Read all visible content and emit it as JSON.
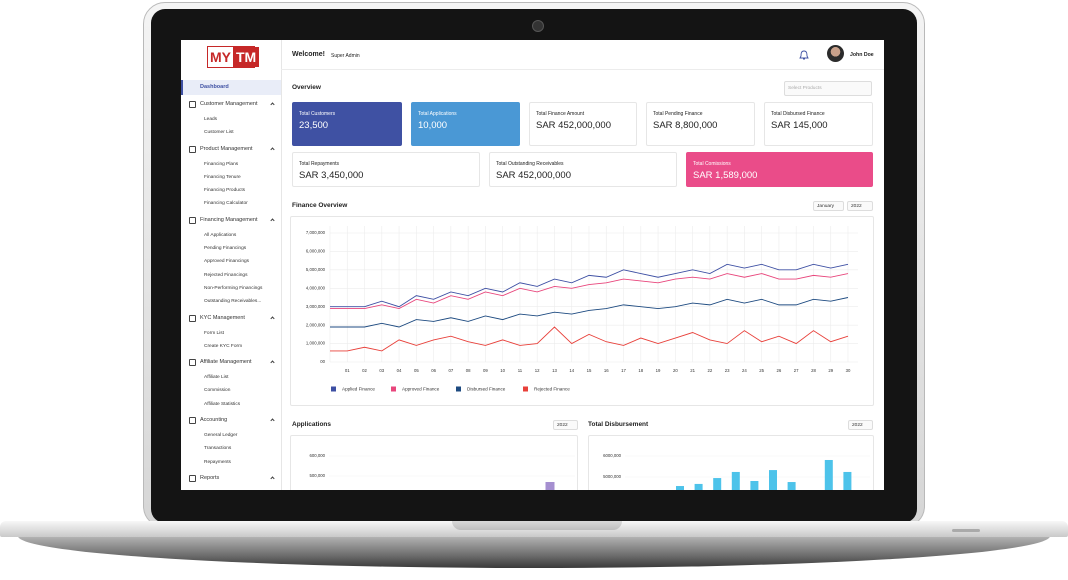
{
  "logo": {
    "left": "MY",
    "right": "TM"
  },
  "sidebar": {
    "active": "Dashboard",
    "sections": [
      {
        "title": "Customer Management",
        "items": [
          "Leads",
          "Customer List"
        ]
      },
      {
        "title": "Product Management",
        "items": [
          "Financing Plans",
          "Financing Tenure",
          "Financing Products",
          "Financing Calculator"
        ]
      },
      {
        "title": "Financing Management",
        "items": [
          "All Applications",
          "Pending Financings",
          "Approved Financings",
          "Rejected Financings",
          "Non-Performing Financings",
          "Outstanding Receivables..."
        ]
      },
      {
        "title": "KYC Management",
        "items": [
          "Form List",
          "Create KYC Form"
        ]
      },
      {
        "title": "Affiliate Management",
        "items": [
          "Affiliate List",
          "Commission",
          "Affiliate Statistics"
        ]
      },
      {
        "title": "Accounting",
        "items": [
          "General Ledger",
          "Transactions",
          "Repayments"
        ]
      },
      {
        "title": "Reports",
        "items": []
      }
    ]
  },
  "header": {
    "greeting": "Welcome!",
    "role": "Super Admin",
    "user": "John Doe"
  },
  "overview": {
    "title": "Overview",
    "select": "Select Products",
    "cards": [
      {
        "label": "Total Customers",
        "value": "23,500"
      },
      {
        "label": "Total Applications",
        "value": "10,000"
      },
      {
        "label": "Total Finance Amount",
        "value": "SAR 452,000,000"
      },
      {
        "label": "Total Pending Finance",
        "value": "SAR 8,800,000"
      },
      {
        "label": "Total Disbursed Finance",
        "value": "SAR 145,000"
      },
      {
        "label": "Total Repayments",
        "value": "SAR 3,450,000"
      },
      {
        "label": "Total Outstanding Receivables",
        "value": "SAR 452,000,000"
      },
      {
        "label": "Total Comissions",
        "value": "SAR 1,589,000"
      }
    ]
  },
  "finance_overview": {
    "title": "Finance Overview",
    "month": "January",
    "year": "2022",
    "chart": {
      "type": "line",
      "categories": [
        null,
        "01",
        "02",
        "03",
        "04",
        "05",
        "06",
        "07",
        "08",
        "09",
        "10",
        "11",
        "12",
        "13",
        "14",
        "15",
        "16",
        "17",
        "18",
        "19",
        "20",
        "21",
        "22",
        "23",
        "24",
        "25",
        "26",
        "27",
        "28",
        "29",
        "30"
      ],
      "ylim": [
        0,
        7000000
      ],
      "yticks": [
        {
          "value": 0,
          "label": "00"
        },
        {
          "value": 1000000,
          "label": "1,000,000"
        },
        {
          "value": 2000000,
          "label": "2,000,000"
        },
        {
          "value": 3000000,
          "label": "3,000,000"
        },
        {
          "value": 4000000,
          "label": "4,000,000"
        },
        {
          "value": 5000000,
          "label": "5,000,000"
        },
        {
          "value": 6000000,
          "label": "6,000,000"
        },
        {
          "value": 7000000,
          "label": "7,000,000"
        }
      ],
      "grid": true,
      "series": [
        {
          "name": "Applied Finance",
          "color": "#3d4fa3",
          "values": [
            3000000,
            3000000,
            3000000,
            3300000,
            3000000,
            3600000,
            3400000,
            3800000,
            3600000,
            4000000,
            3800000,
            4300000,
            4100000,
            4500000,
            4300000,
            4700000,
            4600000,
            5000000,
            4800000,
            4600000,
            4800000,
            5000000,
            4800000,
            5300000,
            5100000,
            5300000,
            5000000,
            5000000,
            5300000,
            5100000,
            5300000
          ]
        },
        {
          "name": "Approved Finance",
          "color": "#e8467c",
          "values": [
            2900000,
            2900000,
            2900000,
            3100000,
            2900000,
            3400000,
            3200000,
            3600000,
            3400000,
            3800000,
            3600000,
            4000000,
            3800000,
            4100000,
            4000000,
            4200000,
            4300000,
            4500000,
            4400000,
            4300000,
            4500000,
            4600000,
            4500000,
            4800000,
            4600000,
            4800000,
            4500000,
            4500000,
            4700000,
            4600000,
            4800000
          ]
        },
        {
          "name": "Disbursed Finance",
          "color": "#1d4a80",
          "values": [
            1900000,
            1900000,
            1900000,
            2100000,
            1900000,
            2300000,
            2200000,
            2400000,
            2200000,
            2500000,
            2300000,
            2600000,
            2500000,
            2700000,
            2600000,
            2800000,
            2900000,
            3100000,
            3000000,
            2900000,
            3000000,
            3200000,
            3100000,
            3400000,
            3200000,
            3400000,
            3100000,
            3100000,
            3400000,
            3300000,
            3500000
          ]
        },
        {
          "name": "Rejected Finance",
          "color": "#e8403a",
          "values": [
            600000,
            600000,
            800000,
            600000,
            1200000,
            900000,
            1200000,
            1400000,
            1100000,
            900000,
            1200000,
            900000,
            1000000,
            1900000,
            1000000,
            1500000,
            1100000,
            900000,
            1300000,
            1000000,
            1300000,
            1600000,
            1200000,
            1000000,
            1700000,
            1100000,
            1400000,
            1000000,
            1700000,
            1100000,
            1400000
          ]
        }
      ]
    }
  },
  "applications": {
    "title": "Applications",
    "year": "2022",
    "chart": {
      "type": "bar",
      "color": "#a58fd0",
      "yticks": [
        {
          "value": 600000,
          "label": "600,000"
        },
        {
          "value": 500000,
          "label": "500,000"
        }
      ],
      "values": [
        470000
      ]
    }
  },
  "disbursement": {
    "title": "Total Disbursement",
    "year": "2022",
    "chart": {
      "type": "bar",
      "color": "#4dc3ea",
      "yticks": [
        {
          "value": 6000000,
          "label": "6000,000"
        },
        {
          "value": 5000000,
          "label": "5000,000"
        }
      ],
      "values": [
        4570000,
        4670000,
        4950000,
        5240000,
        4810000,
        5330000,
        4760000,
        null,
        5810000,
        5240000
      ]
    }
  }
}
